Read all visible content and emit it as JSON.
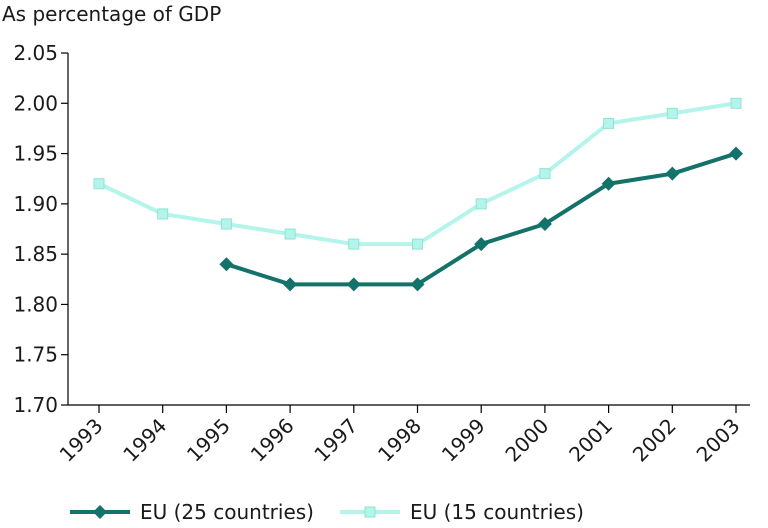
{
  "chart_data": {
    "type": "line",
    "unit_label": "As percentage of GDP",
    "x": [
      "1993",
      "1994",
      "1995",
      "1996",
      "1997",
      "1998",
      "1999",
      "2000",
      "2001",
      "2002",
      "2003"
    ],
    "ylim": [
      1.7,
      2.05
    ],
    "yticks": [
      "1.70",
      "1.75",
      "1.80",
      "1.85",
      "1.90",
      "1.95",
      "2.00",
      "2.05"
    ],
    "grid": false,
    "legend_position": "bottom",
    "series": [
      {
        "name": "EU (25 countries)",
        "color": "#13726a",
        "marker": "diamond",
        "values": [
          null,
          null,
          1.84,
          1.82,
          1.82,
          1.82,
          1.86,
          1.88,
          1.92,
          1.93,
          1.95
        ]
      },
      {
        "name": "EU (15 countries)",
        "color": "#b3f5ea",
        "marker": "square",
        "values": [
          1.92,
          1.89,
          1.88,
          1.87,
          1.86,
          1.86,
          1.9,
          1.93,
          1.98,
          1.99,
          2.0
        ]
      }
    ]
  }
}
